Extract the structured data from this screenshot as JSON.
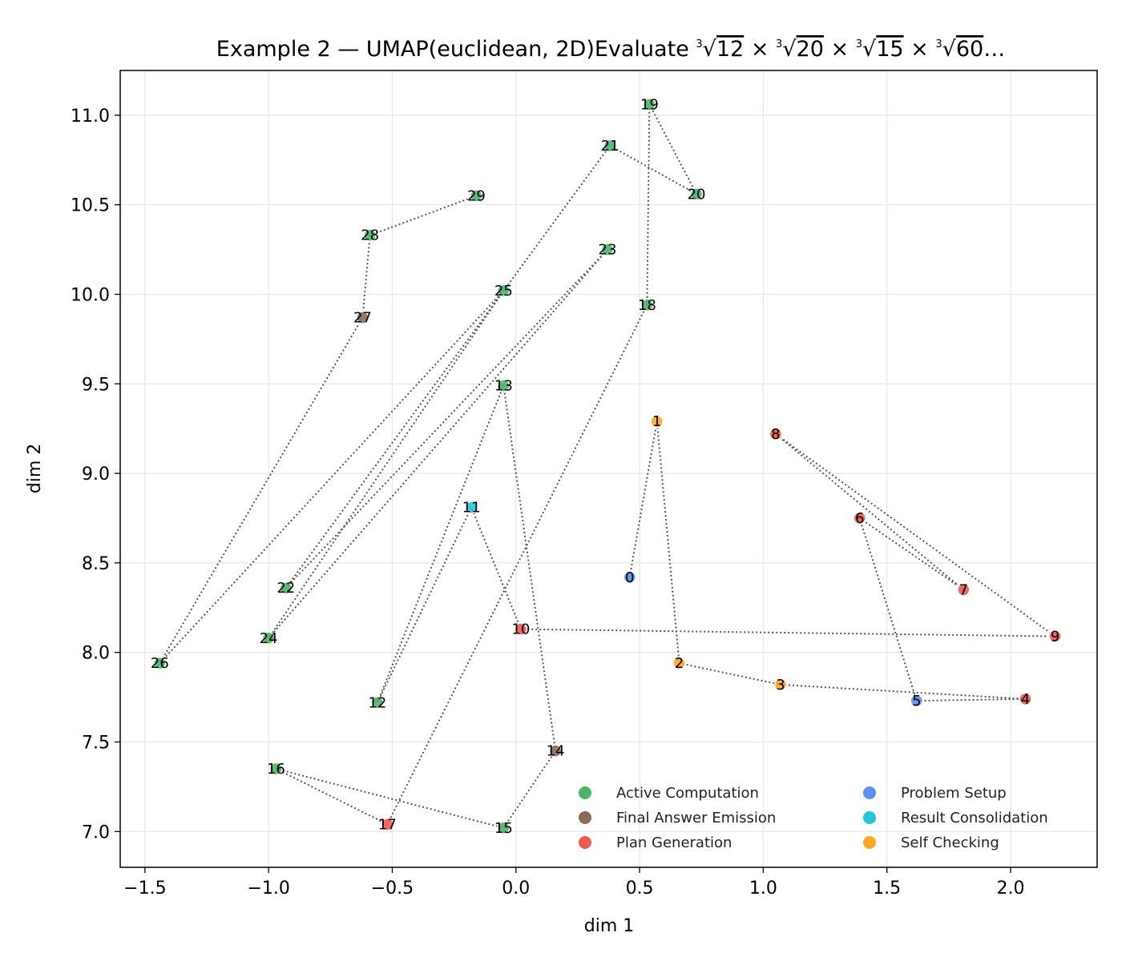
{
  "chart_data": {
    "type": "scatter",
    "title": {
      "prefix": "Example 2 — UMAP(euclidean, 2D)Evaluate ",
      "radicands": [
        "12",
        "20",
        "15",
        "60"
      ],
      "root_index": "3",
      "times": "×",
      "ellipsis": "…"
    },
    "xlabel": "dim 1",
    "ylabel": "dim 2",
    "xlim": [
      -1.6,
      2.35
    ],
    "ylim": [
      6.8,
      11.25
    ],
    "xticks": [
      -1.5,
      -1.0,
      -0.5,
      0.0,
      0.5,
      1.0,
      1.5,
      2.0
    ],
    "xtick_labels": [
      "−1.5",
      "−1.0",
      "−0.5",
      "0.0",
      "0.5",
      "1.0",
      "1.5",
      "2.0"
    ],
    "yticks": [
      7.0,
      7.5,
      8.0,
      8.5,
      9.0,
      9.5,
      10.0,
      10.5,
      11.0
    ],
    "ytick_labels": [
      "7.0",
      "7.5",
      "8.0",
      "8.5",
      "9.0",
      "9.5",
      "10.0",
      "10.5",
      "11.0"
    ],
    "grid": true,
    "legend_position": "lower-right",
    "categories": [
      {
        "name": "Active Computation",
        "color": "#4cb46a"
      },
      {
        "name": "Final Answer Emission",
        "color": "#8c6a5a"
      },
      {
        "name": "Plan Generation",
        "color": "#ee5a4f"
      },
      {
        "name": "Problem Setup",
        "color": "#5b8ff0"
      },
      {
        "name": "Result Consolidation",
        "color": "#26c6da"
      },
      {
        "name": "Self Checking",
        "color": "#ffa726"
      }
    ],
    "points": [
      {
        "label": "0",
        "x": 0.46,
        "y": 8.42,
        "category": 3
      },
      {
        "label": "1",
        "x": 0.57,
        "y": 9.29,
        "category": 5
      },
      {
        "label": "2",
        "x": 0.66,
        "y": 7.94,
        "category": 5
      },
      {
        "label": "3",
        "x": 1.07,
        "y": 7.82,
        "category": 5
      },
      {
        "label": "4",
        "x": 2.06,
        "y": 7.74,
        "category": 2
      },
      {
        "label": "5",
        "x": 1.62,
        "y": 7.73,
        "category": 3
      },
      {
        "label": "6",
        "x": 1.39,
        "y": 8.75,
        "category": 2
      },
      {
        "label": "7",
        "x": 1.81,
        "y": 8.35,
        "category": 2
      },
      {
        "label": "8",
        "x": 1.05,
        "y": 9.22,
        "category": 2
      },
      {
        "label": "9",
        "x": 2.18,
        "y": 8.09,
        "category": 2
      },
      {
        "label": "10",
        "x": 0.02,
        "y": 8.13,
        "category": 2
      },
      {
        "label": "11",
        "x": -0.18,
        "y": 8.81,
        "category": 4
      },
      {
        "label": "12",
        "x": -0.56,
        "y": 7.72,
        "category": 0
      },
      {
        "label": "13",
        "x": -0.05,
        "y": 9.49,
        "category": 0
      },
      {
        "label": "14",
        "x": 0.16,
        "y": 7.45,
        "category": 1
      },
      {
        "label": "15",
        "x": -0.05,
        "y": 7.02,
        "category": 0
      },
      {
        "label": "16",
        "x": -0.97,
        "y": 7.35,
        "category": 0
      },
      {
        "label": "17",
        "x": -0.52,
        "y": 7.04,
        "category": 2
      },
      {
        "label": "18",
        "x": 0.53,
        "y": 9.94,
        "category": 0
      },
      {
        "label": "19",
        "x": 0.54,
        "y": 11.06,
        "category": 0
      },
      {
        "label": "20",
        "x": 0.73,
        "y": 10.56,
        "category": 0
      },
      {
        "label": "21",
        "x": 0.38,
        "y": 10.83,
        "category": 0
      },
      {
        "label": "22",
        "x": -0.93,
        "y": 8.36,
        "category": 0
      },
      {
        "label": "23",
        "x": 0.37,
        "y": 10.25,
        "category": 0
      },
      {
        "label": "24",
        "x": -1.0,
        "y": 8.08,
        "category": 0
      },
      {
        "label": "25",
        "x": -0.05,
        "y": 10.02,
        "category": 0
      },
      {
        "label": "26",
        "x": -1.44,
        "y": 7.94,
        "category": 0
      },
      {
        "label": "27",
        "x": -0.62,
        "y": 9.87,
        "category": 1
      },
      {
        "label": "28",
        "x": -0.59,
        "y": 10.33,
        "category": 0
      },
      {
        "label": "29",
        "x": -0.16,
        "y": 10.55,
        "category": 0
      }
    ]
  }
}
